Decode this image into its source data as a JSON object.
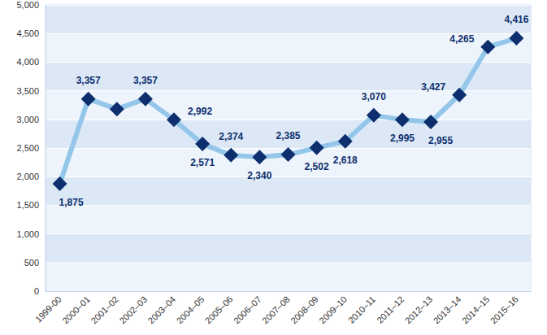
{
  "chart_data": {
    "type": "line",
    "categories": [
      "1999-00",
      "2000–01",
      "2001–02",
      "2002–03",
      "2003–04",
      "2004–05",
      "2005–06",
      "2006–07",
      "2007–08",
      "2008–09",
      "2009–10",
      "2010–11",
      "2011–12",
      "2012–13",
      "2013–14",
      "2014–15",
      "2015–16"
    ],
    "values": [
      1875,
      3357,
      3180,
      3357,
      2992,
      2571,
      2374,
      2340,
      2385,
      2502,
      2618,
      3070,
      2995,
      2955,
      3427,
      4265,
      4416
    ],
    "value_labels": [
      "1,875",
      "3,357",
      null,
      "3,357",
      "2,992",
      "2,571",
      "2,374",
      "2,340",
      "2,385",
      "2,502",
      "2,618",
      "3,070",
      "2,995",
      "2,955",
      "3,427",
      "4,265",
      "4,416"
    ],
    "color": "#94c6ea",
    "marker": "diamond",
    "data_labels": true,
    "ylim": [
      0,
      5000
    ],
    "yticks": [
      0,
      500,
      {
        "value": 1000,
        "label": "1,000"
      },
      {
        "value": 1500,
        "label": "1,500"
      },
      {
        "value": 2000,
        "label": "2,000"
      },
      {
        "value": 2500,
        "label": "2,500"
      },
      {
        "value": 3000,
        "label": "3,000"
      },
      {
        "value": 3500,
        "label": "3,500"
      },
      {
        "value": 4000,
        "label": "4,000"
      },
      {
        "value": 4500,
        "label": "4,500"
      },
      {
        "value": 5000,
        "label": "5,000"
      }
    ],
    "grid": true
  }
}
